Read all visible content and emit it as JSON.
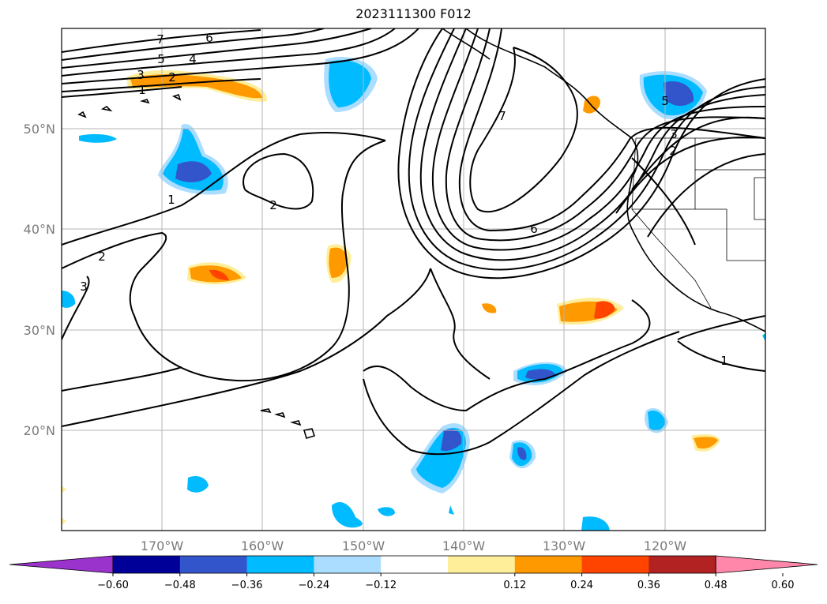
{
  "title": "2023111300 F012",
  "lat_labels": [
    "50°N",
    "40°N",
    "30°N",
    "20°N"
  ],
  "lon_labels": [
    "170°W",
    "160°W",
    "150°W",
    "140°W",
    "130°W",
    "120°W"
  ],
  "colorbar": {
    "ticks": [
      "−0.60",
      "−0.48",
      "−0.36",
      "−0.24",
      "−0.12",
      "0.12",
      "0.24",
      "0.36",
      "0.48",
      "0.60"
    ],
    "colors": [
      "#9933cc",
      "#000099",
      "#3355cc",
      "#00bbff",
      "#aaddff",
      "#ffffff",
      "#ffee99",
      "#ff9900",
      "#ff4400",
      "#b22222",
      "#ff88aa"
    ]
  },
  "contour_labels": [
    "7",
    "6",
    "5",
    "4",
    "3",
    "2",
    "1",
    "1",
    "2",
    "2",
    "3",
    "7",
    "6",
    "5",
    "3",
    "2",
    "1"
  ]
}
